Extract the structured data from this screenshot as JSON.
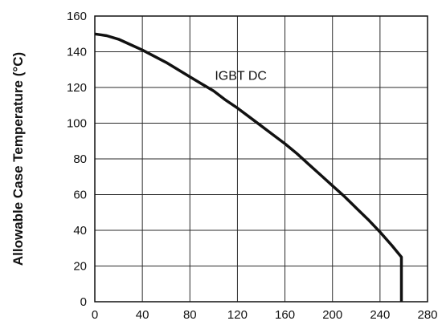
{
  "chart_data": {
    "type": "line",
    "title": "",
    "xlabel": "",
    "ylabel": "Allowable Case Temperature (°C)",
    "xlim": [
      0,
      280
    ],
    "ylim": [
      0,
      160
    ],
    "x_ticks": [
      "0",
      "40",
      "80",
      "120",
      "160",
      "200",
      "240",
      "280"
    ],
    "y_ticks": [
      "0",
      "20",
      "40",
      "60",
      "80",
      "100",
      "120",
      "140",
      "160"
    ],
    "grid": true,
    "annotation": "IGBT DC",
    "series": [
      {
        "x": [
          0,
          10,
          20,
          30,
          40,
          50,
          60,
          70,
          80,
          90,
          100,
          110,
          120,
          130,
          140,
          150,
          160,
          170,
          180,
          190,
          200,
          210,
          220,
          230,
          240,
          250,
          258,
          258
        ],
        "y": [
          150,
          149,
          147,
          144,
          141,
          137.5,
          134,
          130,
          126,
          122,
          118,
          113,
          108.5,
          103.5,
          98.5,
          93.5,
          88.5,
          83,
          77,
          71,
          65,
          59,
          52.5,
          46,
          39,
          31.5,
          25,
          0
        ]
      }
    ]
  }
}
